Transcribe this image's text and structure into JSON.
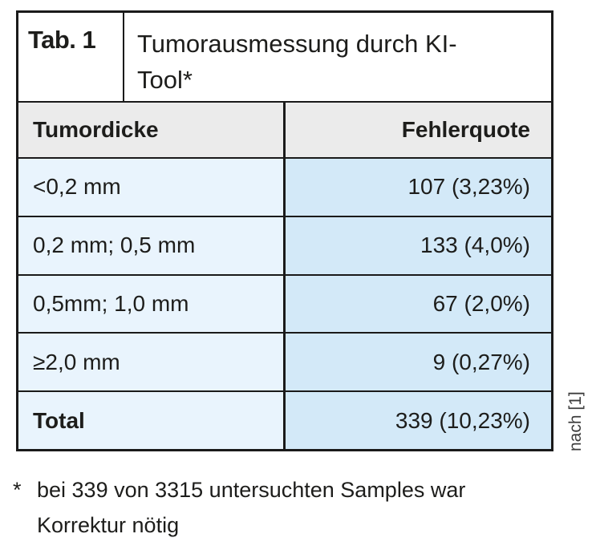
{
  "table": {
    "label": "Tab. 1",
    "title": "Tumorausmessung durch KI-Tool*",
    "header": {
      "col1": "Tumordicke",
      "col2": "Fehlerquote"
    },
    "rows": [
      {
        "thickness": "<0,2 mm",
        "error_rate": "107 (3,23%)"
      },
      {
        "thickness": "0,2 mm; 0,5 mm",
        "error_rate": "133 (4,0%)"
      },
      {
        "thickness": "0,5mm; 1,0 mm",
        "error_rate": "67 (2,0%)"
      },
      {
        "thickness": "≥2,0 mm",
        "error_rate": "9 (0,27%)"
      },
      {
        "thickness": "Total",
        "error_rate": "339 (10,23%)"
      }
    ]
  },
  "footnote": {
    "marker": "*",
    "text": "bei 339 von 3315 untersuchten Samples war Korrektur nötig"
  },
  "source_note": "nach [1]",
  "colors": {
    "border": "#1a1a1a",
    "header_bg": "#ebebeb",
    "cell_left_bg": "#e9f4fd",
    "cell_right_bg": "#d3e9f8",
    "text": "#1d1d1b",
    "source_text": "#3c3c3c"
  }
}
